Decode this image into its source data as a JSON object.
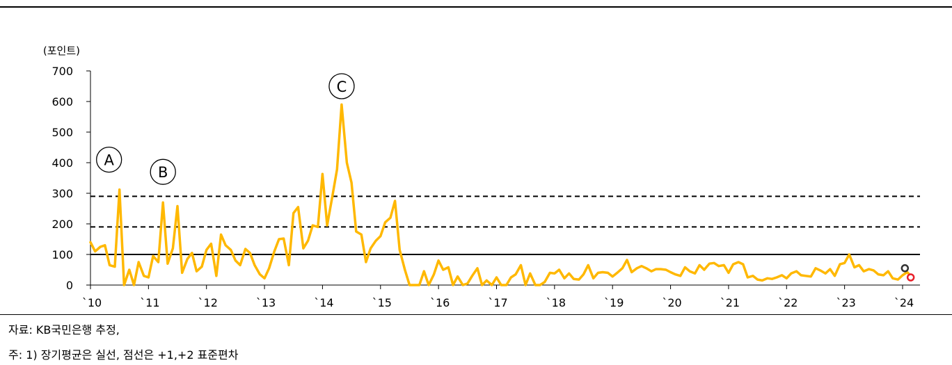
{
  "notes": {
    "source": "자료: KB국민은행 추정,",
    "footnote": "주: 1) 장기평균은 실선, 점선은 +1,+2 표준편차"
  },
  "chart_data": {
    "type": "line",
    "ylabel": "(포인트)",
    "ylim": [
      0,
      700
    ],
    "yticks": [
      0,
      100,
      200,
      300,
      400,
      500,
      600,
      700
    ],
    "xlim": [
      2010,
      2024.3
    ],
    "xticks": [
      {
        "x": 2010,
        "label": "`10"
      },
      {
        "x": 2011,
        "label": "`11"
      },
      {
        "x": 2012,
        "label": "`12"
      },
      {
        "x": 2013,
        "label": "`13"
      },
      {
        "x": 2014,
        "label": "`14"
      },
      {
        "x": 2015,
        "label": "`15"
      },
      {
        "x": 2016,
        "label": "`16"
      },
      {
        "x": 2017,
        "label": "`17"
      },
      {
        "x": 2018,
        "label": "`18"
      },
      {
        "x": 2019,
        "label": "`19"
      },
      {
        "x": 2020,
        "label": "`20"
      },
      {
        "x": 2021,
        "label": "`21"
      },
      {
        "x": 2022,
        "label": "`22"
      },
      {
        "x": 2023,
        "label": "`23"
      },
      {
        "x": 2024,
        "label": "`24"
      }
    ],
    "reference_lines": [
      {
        "y": 100,
        "style": "solid"
      },
      {
        "y": 190,
        "style": "dashed"
      },
      {
        "y": 290,
        "style": "dashed"
      }
    ],
    "annotations": [
      {
        "label": "A",
        "x": 2010.32,
        "y": 410
      },
      {
        "label": "B",
        "x": 2011.25,
        "y": 370
      },
      {
        "label": "C",
        "x": 2014.33,
        "y": 650
      }
    ],
    "end_markers": [
      {
        "x": 2024.04,
        "y": 55,
        "color": "#333333"
      },
      {
        "x": 2024.14,
        "y": 25,
        "color": "#e8202a"
      }
    ],
    "line_color": "#FFB800",
    "series": [
      {
        "values": [
          [
            2010.0,
            140
          ],
          [
            2010.08,
            110
          ],
          [
            2010.17,
            125
          ],
          [
            2010.25,
            130
          ],
          [
            2010.33,
            65
          ],
          [
            2010.42,
            60
          ],
          [
            2010.5,
            312
          ],
          [
            2010.58,
            0
          ],
          [
            2010.67,
            50
          ],
          [
            2010.75,
            0
          ],
          [
            2010.83,
            75
          ],
          [
            2010.92,
            30
          ],
          [
            2011.0,
            25
          ],
          [
            2011.08,
            95
          ],
          [
            2011.17,
            75
          ],
          [
            2011.25,
            270
          ],
          [
            2011.33,
            70
          ],
          [
            2011.42,
            120
          ],
          [
            2011.5,
            258
          ],
          [
            2011.58,
            40
          ],
          [
            2011.67,
            85
          ],
          [
            2011.75,
            105
          ],
          [
            2011.83,
            45
          ],
          [
            2011.92,
            60
          ],
          [
            2012.0,
            115
          ],
          [
            2012.08,
            135
          ],
          [
            2012.17,
            30
          ],
          [
            2012.25,
            165
          ],
          [
            2012.33,
            130
          ],
          [
            2012.42,
            115
          ],
          [
            2012.5,
            80
          ],
          [
            2012.58,
            65
          ],
          [
            2012.67,
            118
          ],
          [
            2012.75,
            105
          ],
          [
            2012.83,
            65
          ],
          [
            2012.92,
            35
          ],
          [
            2013.0,
            22
          ],
          [
            2013.08,
            55
          ],
          [
            2013.17,
            110
          ],
          [
            2013.25,
            150
          ],
          [
            2013.33,
            152
          ],
          [
            2013.42,
            65
          ],
          [
            2013.5,
            235
          ],
          [
            2013.58,
            255
          ],
          [
            2013.67,
            120
          ],
          [
            2013.75,
            145
          ],
          [
            2013.83,
            195
          ],
          [
            2013.92,
            190
          ],
          [
            2014.0,
            363
          ],
          [
            2014.08,
            195
          ],
          [
            2014.17,
            290
          ],
          [
            2014.25,
            378
          ],
          [
            2014.33,
            590
          ],
          [
            2014.42,
            400
          ],
          [
            2014.5,
            335
          ],
          [
            2014.58,
            175
          ],
          [
            2014.67,
            165
          ],
          [
            2014.75,
            75
          ],
          [
            2014.83,
            120
          ],
          [
            2014.92,
            145
          ],
          [
            2015.0,
            160
          ],
          [
            2015.08,
            205
          ],
          [
            2015.17,
            220
          ],
          [
            2015.25,
            275
          ],
          [
            2015.33,
            115
          ],
          [
            2015.42,
            50
          ],
          [
            2015.5,
            0
          ],
          [
            2015.58,
            0
          ],
          [
            2015.67,
            0
          ],
          [
            2015.75,
            45
          ],
          [
            2015.83,
            0
          ],
          [
            2015.92,
            35
          ],
          [
            2016.0,
            80
          ],
          [
            2016.08,
            50
          ],
          [
            2016.17,
            58
          ],
          [
            2016.25,
            0
          ],
          [
            2016.33,
            28
          ],
          [
            2016.42,
            0
          ],
          [
            2016.5,
            5
          ],
          [
            2016.58,
            30
          ],
          [
            2016.67,
            55
          ],
          [
            2016.75,
            0
          ],
          [
            2016.83,
            15
          ],
          [
            2016.92,
            0
          ],
          [
            2017.0,
            25
          ],
          [
            2017.08,
            0
          ],
          [
            2017.17,
            0
          ],
          [
            2017.25,
            25
          ],
          [
            2017.33,
            35
          ],
          [
            2017.42,
            65
          ],
          [
            2017.5,
            0
          ],
          [
            2017.58,
            38
          ],
          [
            2017.67,
            0
          ],
          [
            2017.75,
            0
          ],
          [
            2017.83,
            10
          ],
          [
            2017.92,
            40
          ],
          [
            2018.0,
            38
          ],
          [
            2018.08,
            50
          ],
          [
            2018.17,
            22
          ],
          [
            2018.25,
            38
          ],
          [
            2018.33,
            20
          ],
          [
            2018.42,
            18
          ],
          [
            2018.5,
            35
          ],
          [
            2018.58,
            65
          ],
          [
            2018.67,
            22
          ],
          [
            2018.75,
            40
          ],
          [
            2018.83,
            42
          ],
          [
            2018.92,
            40
          ],
          [
            2019.0,
            28
          ],
          [
            2019.08,
            40
          ],
          [
            2019.17,
            55
          ],
          [
            2019.25,
            82
          ],
          [
            2019.33,
            42
          ],
          [
            2019.42,
            55
          ],
          [
            2019.5,
            62
          ],
          [
            2019.58,
            55
          ],
          [
            2019.67,
            45
          ],
          [
            2019.75,
            52
          ],
          [
            2019.83,
            52
          ],
          [
            2019.92,
            50
          ],
          [
            2020.0,
            42
          ],
          [
            2020.08,
            35
          ],
          [
            2020.17,
            30
          ],
          [
            2020.25,
            58
          ],
          [
            2020.33,
            45
          ],
          [
            2020.42,
            38
          ],
          [
            2020.5,
            65
          ],
          [
            2020.58,
            50
          ],
          [
            2020.67,
            70
          ],
          [
            2020.75,
            72
          ],
          [
            2020.83,
            62
          ],
          [
            2020.92,
            65
          ],
          [
            2021.0,
            40
          ],
          [
            2021.08,
            68
          ],
          [
            2021.17,
            75
          ],
          [
            2021.25,
            68
          ],
          [
            2021.33,
            25
          ],
          [
            2021.42,
            30
          ],
          [
            2021.5,
            18
          ],
          [
            2021.58,
            15
          ],
          [
            2021.67,
            22
          ],
          [
            2021.75,
            20
          ],
          [
            2021.83,
            25
          ],
          [
            2021.92,
            32
          ],
          [
            2022.0,
            22
          ],
          [
            2022.08,
            38
          ],
          [
            2022.17,
            45
          ],
          [
            2022.25,
            32
          ],
          [
            2022.33,
            30
          ],
          [
            2022.42,
            28
          ],
          [
            2022.5,
            55
          ],
          [
            2022.58,
            48
          ],
          [
            2022.67,
            38
          ],
          [
            2022.75,
            52
          ],
          [
            2022.83,
            30
          ],
          [
            2022.92,
            68
          ],
          [
            2023.0,
            72
          ],
          [
            2023.08,
            100
          ],
          [
            2023.17,
            58
          ],
          [
            2023.25,
            65
          ],
          [
            2023.33,
            45
          ],
          [
            2023.42,
            52
          ],
          [
            2023.5,
            48
          ],
          [
            2023.58,
            35
          ],
          [
            2023.67,
            32
          ],
          [
            2023.75,
            45
          ],
          [
            2023.83,
            22
          ],
          [
            2023.92,
            18
          ],
          [
            2024.0,
            32
          ],
          [
            2024.08,
            42
          ],
          [
            2024.14,
            30
          ]
        ]
      }
    ]
  }
}
